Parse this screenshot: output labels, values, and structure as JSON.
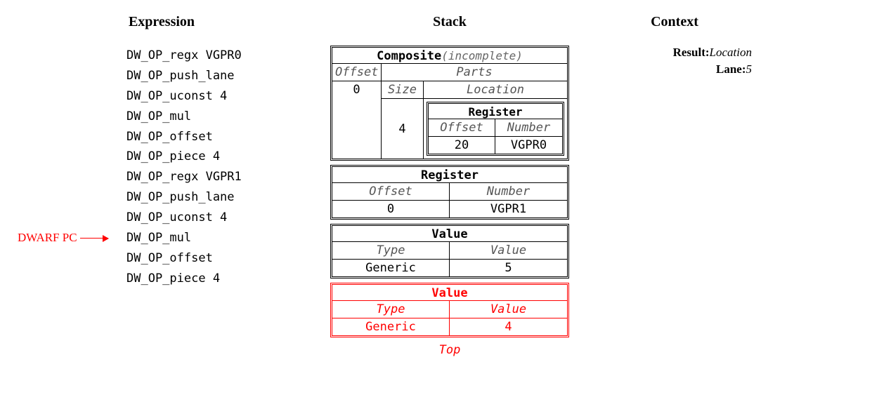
{
  "headings": {
    "expression": "Expression",
    "stack": "Stack",
    "context": "Context"
  },
  "pc_label": "DWARF PC",
  "pc_index": 9,
  "ops": [
    "DW_OP_regx VGPR0",
    "DW_OP_push_lane",
    "DW_OP_uconst 4",
    "DW_OP_mul",
    "DW_OP_offset",
    "DW_OP_piece 4",
    "DW_OP_regx VGPR1",
    "DW_OP_push_lane",
    "DW_OP_uconst 4",
    "DW_OP_mul",
    "DW_OP_offset",
    "DW_OP_piece 4"
  ],
  "context": {
    "result_k": "Result:",
    "result_v": "Location",
    "lane_k": "Lane:",
    "lane_v": "5"
  },
  "composite": {
    "title": "Composite",
    "status": "(incomplete)",
    "offset_h": "Offset",
    "parts_h": "Parts",
    "size_h": "Size",
    "location_h": "Location",
    "offset_v": "0",
    "size_v": "4",
    "register_title": "Register",
    "reg_off_h": "Offset",
    "reg_num_h": "Number",
    "reg_off_v": "20",
    "reg_num_v": "VGPR0"
  },
  "register": {
    "title": "Register",
    "off_h": "Offset",
    "num_h": "Number",
    "off_v": "0",
    "num_v": "VGPR1"
  },
  "value1": {
    "title": "Value",
    "type_h": "Type",
    "val_h": "Value",
    "type_v": "Generic",
    "val_v": "5"
  },
  "value2": {
    "title": "Value",
    "type_h": "Type",
    "val_h": "Value",
    "type_v": "Generic",
    "val_v": "4"
  },
  "top_label": "Top",
  "colors": {
    "pc": "#ff0000",
    "value2": "#ff0000",
    "text": "#000000",
    "muted": "#666666",
    "bg": "#ffffff"
  },
  "fonts": {
    "heading_size_pt": 15,
    "body_size_pt": 13,
    "mono_family": "Menlo/Consolas/DejaVu Sans Mono",
    "serif_family": "Georgia/Times New Roman"
  }
}
